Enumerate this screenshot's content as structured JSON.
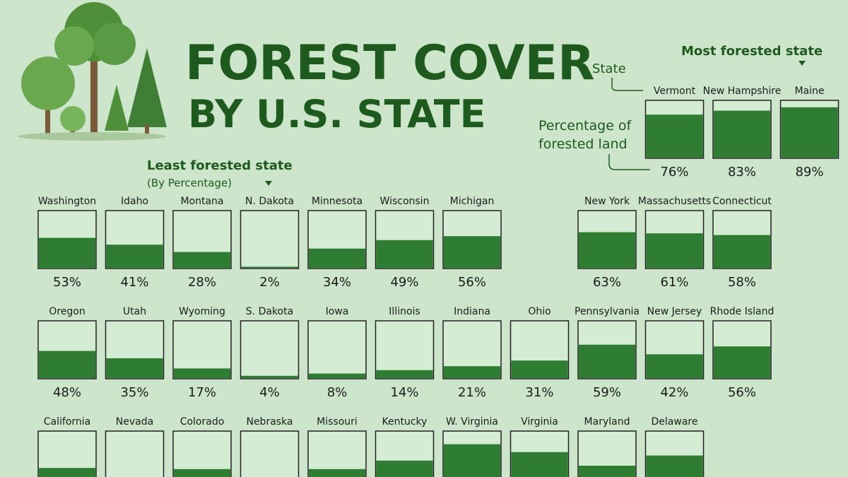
{
  "header": {
    "title": "FOREST COVER",
    "subtitle": "BY U.S. STATE"
  },
  "legend": {
    "most": "Most forested state",
    "state": "State",
    "percentage": [
      "Percentage of",
      "forested land"
    ],
    "least": "Least forested state",
    "by": "(By Percentage)"
  },
  "grid": [
    [
      null,
      null,
      null,
      null,
      null,
      null,
      null,
      null,
      null,
      {
        "state": "Vermont",
        "value": 76,
        "label": "76%"
      },
      {
        "state": "New Hampshire",
        "value": 83,
        "label": "83%"
      },
      {
        "state": "Maine",
        "value": 89,
        "label": "89%"
      }
    ],
    [
      {
        "state": "Washington",
        "value": 53,
        "label": "53%"
      },
      {
        "state": "Idaho",
        "value": 41,
        "label": "41%"
      },
      {
        "state": "Montana",
        "value": 28,
        "label": "28%"
      },
      {
        "state": "N. Dakota",
        "value": 2,
        "label": "2%"
      },
      {
        "state": "Minnesota",
        "value": 34,
        "label": "34%"
      },
      {
        "state": "Wisconsin",
        "value": 49,
        "label": "49%"
      },
      {
        "state": "Michigan",
        "value": 56,
        "label": "56%"
      },
      null,
      {
        "state": "New York",
        "value": 63,
        "label": "63%"
      },
      {
        "state": "Massachusetts",
        "value": 61,
        "label": "61%"
      },
      {
        "state": "Connecticut",
        "value": 58,
        "label": "58%"
      }
    ],
    [
      {
        "state": "Oregon",
        "value": 48,
        "label": "48%"
      },
      {
        "state": "Utah",
        "value": 35,
        "label": "35%"
      },
      {
        "state": "Wyoming",
        "value": 17,
        "label": "17%"
      },
      {
        "state": "S. Dakota",
        "value": 4,
        "label": "4%"
      },
      {
        "state": "Iowa",
        "value": 8,
        "label": "8%"
      },
      {
        "state": "Illinois",
        "value": 14,
        "label": "14%"
      },
      {
        "state": "Indiana",
        "value": 21,
        "label": "21%"
      },
      {
        "state": "Ohio",
        "value": 31,
        "label": "31%"
      },
      {
        "state": "Pennsylvania",
        "value": 59,
        "label": "59%"
      },
      {
        "state": "New Jersey",
        "value": 42,
        "label": "42%"
      },
      {
        "state": "Rhode Island",
        "value": 56,
        "label": "56%"
      }
    ],
    [
      {
        "state": "California",
        "value": 36
      },
      {
        "state": "Nevada",
        "value": 13
      },
      {
        "state": "Colorado",
        "value": 34
      },
      {
        "state": "Nebraska",
        "value": 3
      },
      {
        "state": "Missouri",
        "value": 34
      },
      {
        "state": "Kentucky",
        "value": 49
      },
      {
        "state": "W. Virginia",
        "value": 78
      },
      {
        "state": "Virginia",
        "value": 64
      },
      {
        "state": "Maryland",
        "value": 40
      },
      {
        "state": "Delaware",
        "value": 58
      }
    ]
  ]
}
